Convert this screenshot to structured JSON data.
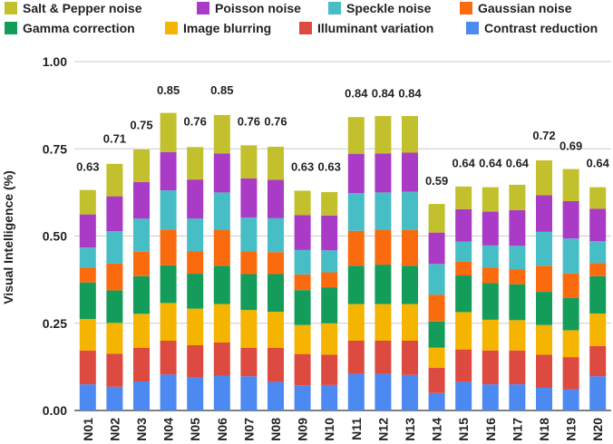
{
  "chart_data": {
    "type": "bar",
    "stacked": true,
    "ylabel": "Visual Intelligence (%)",
    "ylim": [
      0,
      1.0
    ],
    "yticks": [
      "0.00",
      "0.25",
      "0.50",
      "0.75",
      "1.00"
    ],
    "grid": true,
    "legend_position": "top",
    "categories": [
      "N01",
      "N02",
      "N03",
      "N04",
      "N05",
      "N06",
      "N07",
      "N08",
      "N09",
      "N10",
      "N11",
      "N12",
      "N13",
      "N14",
      "N15",
      "N16",
      "N17",
      "N18",
      "N19",
      "N20"
    ],
    "totals": [
      "0.63",
      "0.71",
      "0.75",
      "0.85",
      "0.76",
      "0.85",
      "0.76",
      "0.76",
      "0.63",
      "0.63",
      "0.84",
      "0.84",
      "0.84",
      "0.59",
      "0.64",
      "0.64",
      "0.64",
      "0.72",
      "0.69",
      "0.64"
    ],
    "series": [
      {
        "name": "Contrast reduction",
        "color": "#4c89f0",
        "values": [
          0.075,
          0.068,
          0.083,
          0.103,
          0.095,
          0.1,
          0.098,
          0.082,
          0.072,
          0.073,
          0.105,
          0.105,
          0.102,
          0.05,
          0.082,
          0.075,
          0.075,
          0.065,
          0.06,
          0.098
        ]
      },
      {
        "name": "Illuminant variation",
        "color": "#dd4a40",
        "values": [
          0.097,
          0.095,
          0.097,
          0.097,
          0.092,
          0.095,
          0.082,
          0.098,
          0.09,
          0.087,
          0.095,
          0.095,
          0.098,
          0.072,
          0.093,
          0.097,
          0.097,
          0.095,
          0.093,
          0.087
        ]
      },
      {
        "name": "Image blurring",
        "color": "#f5b400",
        "values": [
          0.09,
          0.088,
          0.097,
          0.108,
          0.105,
          0.11,
          0.108,
          0.103,
          0.083,
          0.09,
          0.105,
          0.105,
          0.105,
          0.058,
          0.107,
          0.088,
          0.087,
          0.085,
          0.077,
          0.093
        ]
      },
      {
        "name": "Gamma correction",
        "color": "#139c5a",
        "values": [
          0.105,
          0.093,
          0.108,
          0.108,
          0.1,
          0.11,
          0.103,
          0.108,
          0.1,
          0.103,
          0.11,
          0.113,
          0.11,
          0.075,
          0.105,
          0.105,
          0.103,
          0.095,
          0.093,
          0.107
        ]
      },
      {
        "name": "Gaussian noise",
        "color": "#fa6b0f",
        "values": [
          0.043,
          0.077,
          0.07,
          0.103,
          0.065,
          0.103,
          0.065,
          0.063,
          0.045,
          0.043,
          0.1,
          0.1,
          0.102,
          0.077,
          0.04,
          0.045,
          0.043,
          0.075,
          0.07,
          0.038
        ]
      },
      {
        "name": "Speckle noise",
        "color": "#47bdc6",
        "values": [
          0.057,
          0.093,
          0.095,
          0.112,
          0.093,
          0.107,
          0.097,
          0.097,
          0.07,
          0.063,
          0.108,
          0.107,
          0.11,
          0.088,
          0.057,
          0.063,
          0.067,
          0.097,
          0.1,
          0.062
        ]
      },
      {
        "name": "Poisson noise",
        "color": "#aa3bc6",
        "values": [
          0.095,
          0.1,
          0.105,
          0.11,
          0.112,
          0.112,
          0.112,
          0.11,
          0.1,
          0.1,
          0.113,
          0.112,
          0.112,
          0.09,
          0.093,
          0.097,
          0.102,
          0.105,
          0.107,
          0.093
        ]
      },
      {
        "name": "Salt & Pepper noise",
        "color": "#c2c02c",
        "values": [
          0.07,
          0.093,
          0.093,
          0.112,
          0.093,
          0.11,
          0.095,
          0.095,
          0.07,
          0.067,
          0.105,
          0.107,
          0.105,
          0.082,
          0.065,
          0.07,
          0.073,
          0.1,
          0.092,
          0.062
        ]
      }
    ]
  }
}
